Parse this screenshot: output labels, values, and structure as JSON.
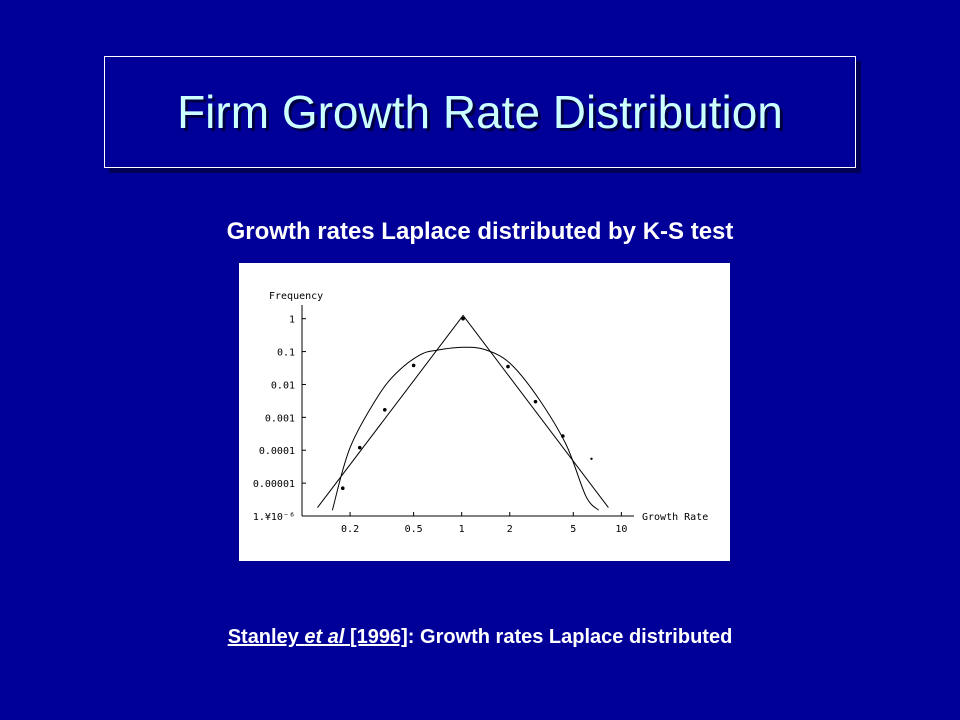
{
  "slide": {
    "title": "Firm Growth Rate Distribution",
    "subtitle": "Growth rates Laplace distributed by K-S test",
    "citation": {
      "author": "Stanley ",
      "etal": "et al",
      "space": " ",
      "year": "[1996]",
      "rest": ": Growth rates Laplace distributed"
    }
  },
  "colors": {
    "background": "#000099",
    "title": "#ccffff",
    "text": "#ffffff"
  },
  "chart_data": {
    "type": "scatter",
    "xlabel": "Growth Rate",
    "ylabel": "Frequency",
    "x_scale": "log",
    "y_scale": "log",
    "xlim": [
      0.1,
      12
    ],
    "ylim": [
      1e-06,
      3
    ],
    "x_ticks": [
      {
        "value": 0.2,
        "label": "0.2"
      },
      {
        "value": 0.5,
        "label": "0.5"
      },
      {
        "value": 1,
        "label": "1"
      },
      {
        "value": 2,
        "label": "2"
      },
      {
        "value": 5,
        "label": "5"
      },
      {
        "value": 10,
        "label": "10"
      }
    ],
    "y_ticks": [
      {
        "value": 1,
        "label": "1"
      },
      {
        "value": 0.1,
        "label": "0.1"
      },
      {
        "value": 0.01,
        "label": "0.01"
      },
      {
        "value": 0.001,
        "label": "0.001"
      },
      {
        "value": 0.0001,
        "label": "0.0001"
      },
      {
        "value": 1e-05,
        "label": "0.00001"
      },
      {
        "value": 1e-06,
        "label": "1.¥10⁻⁶"
      }
    ],
    "grid": false,
    "series": [
      {
        "kind": "points",
        "x": [
          0.18,
          0.23,
          0.33,
          0.5,
          1.02,
          1.95,
          2.9,
          4.3,
          6.5
        ],
        "y": [
          7e-06,
          0.00012,
          0.0017,
          0.038,
          1.0,
          0.035,
          0.003,
          0.00027,
          5.5e-05
        ]
      },
      {
        "kind": "laplace-fit",
        "x": [
          0.125,
          1.02,
          8.3
        ],
        "y": [
          1.8e-06,
          1.25,
          1.8e-06
        ]
      },
      {
        "kind": "gaussian-fit",
        "x": [
          0.155,
          0.2,
          0.3,
          0.4,
          0.55,
          0.7,
          1.02,
          1.4,
          2.0,
          3.0,
          4.5,
          6.0,
          7.2
        ],
        "y": [
          1.5e-06,
          0.00012,
          0.0045,
          0.025,
          0.08,
          0.11,
          0.135,
          0.115,
          0.045,
          0.004,
          0.00015,
          4e-06,
          1.5e-06
        ]
      }
    ]
  }
}
